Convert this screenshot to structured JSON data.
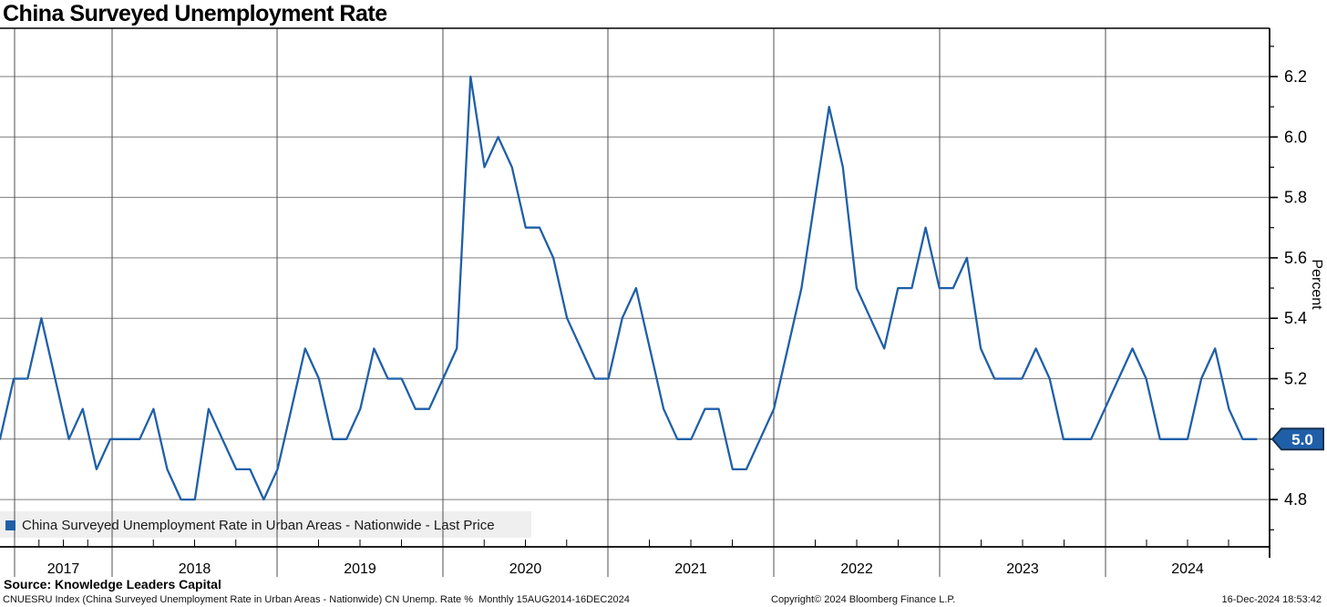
{
  "title": "China Surveyed Unemployment Rate",
  "legend": {
    "label": "China Surveyed Unemployment Rate in Urban Areas - Nationwide - Last Price",
    "marker_color": "#1f5fa8"
  },
  "axis": {
    "percent_label": "Percent",
    "last_value_badge": "5.0"
  },
  "source": {
    "label": "Source: Knowledge Leaders Capital"
  },
  "footer": {
    "security_line": "CNUESRU Index (China Surveyed Unemployment Rate in Urban Areas - Nationwide) CN Unemp. Rate %  Monthly 15AUG2014-16DEC2024",
    "copyright": "Copyright© 2024 Bloomberg Finance L.P.",
    "timestamp": "16-Dec-2024 18:53:42"
  },
  "chart_data": {
    "type": "line",
    "title": "China Surveyed Unemployment Rate",
    "series_name": "China Surveyed Unemployment Rate in Urban Areas - Nationwide - Last Price",
    "line_color": "#1f5fa8",
    "ylabel": "Percent",
    "y_ticks": [
      4.8,
      5.0,
      5.2,
      5.4,
      5.6,
      5.8,
      6.0,
      6.2
    ],
    "ylim": [
      4.64,
      6.36
    ],
    "x_years": [
      "2017",
      "2018",
      "2019",
      "2020",
      "2021",
      "2022",
      "2023",
      "2024"
    ],
    "grid": true,
    "legend_position": "bottom-left",
    "pre_2018_values": [
      5.0,
      5.2,
      5.2,
      5.4,
      5.2,
      5.0,
      5.1,
      4.9,
      5.0
    ],
    "monthly_start": "2018-01",
    "monthly_values": [
      5.0,
      5.0,
      5.1,
      4.9,
      4.8,
      4.8,
      5.1,
      5.0,
      4.9,
      4.9,
      4.8,
      4.9,
      5.1,
      5.3,
      5.2,
      5.0,
      5.0,
      5.1,
      5.3,
      5.2,
      5.2,
      5.1,
      5.1,
      5.2,
      5.3,
      6.2,
      5.9,
      6.0,
      5.9,
      5.7,
      5.7,
      5.6,
      5.4,
      5.3,
      5.2,
      5.2,
      5.4,
      5.5,
      5.3,
      5.1,
      5.0,
      5.0,
      5.1,
      5.1,
      4.9,
      4.9,
      5.0,
      5.1,
      5.3,
      5.5,
      5.8,
      6.1,
      5.9,
      5.5,
      5.4,
      5.3,
      5.5,
      5.5,
      5.7,
      5.5,
      5.5,
      5.6,
      5.3,
      5.2,
      5.2,
      5.2,
      5.3,
      5.2,
      5.0,
      5.0,
      5.0,
      5.1,
      5.2,
      5.3,
      5.2,
      5.0,
      5.0,
      5.0,
      5.2,
      5.3,
      5.1,
      5.0,
      5.0
    ],
    "last_price": 5.0,
    "last_date": "16-Dec-2024"
  },
  "colors": {
    "line": "#1f5fa8",
    "badge_fill": "#1f5fa8",
    "badge_border": "#16314f",
    "h_grid": "#7d7d7d",
    "v_grid": "#4f4f4f",
    "frame": "#000000",
    "legend_bg": "#efefef"
  }
}
